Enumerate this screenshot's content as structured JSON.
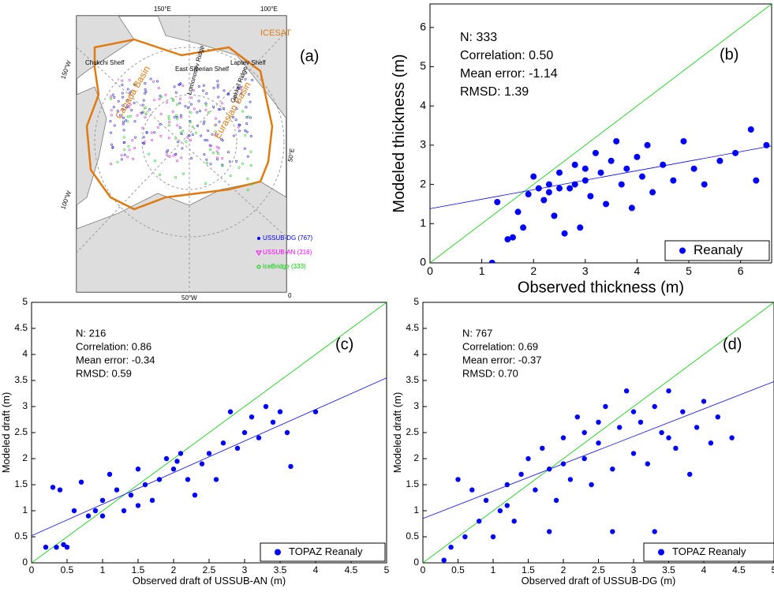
{
  "map": {
    "label": "(a)",
    "boundary_label": "ICESAT",
    "place_names": [
      "Chukchi Shelf",
      "East Siberian Shelf",
      "Laptev Shelf",
      "Canada Basin",
      "Eurasian Basin",
      "Lomonosov Ridge",
      "Gakkel Ridge"
    ],
    "coord_labels": [
      "150°E",
      "100°E",
      "150°W",
      "50°E",
      "100°W",
      "50°W",
      "0"
    ],
    "legend": [
      "USSUB-DG (767)",
      "USSUB-AN (216)",
      "IceBridge (333)"
    ]
  },
  "chart_data": [
    {
      "type": "scatter",
      "label": "(b)",
      "stats": [
        "N: 333",
        "Correlation: 0.50",
        "Mean error: -1.14",
        "RMSD: 1.39"
      ],
      "xlabel": "Observed thickness (m)",
      "ylabel": "Modeled thickness (m)",
      "xlim": [
        0,
        6.6
      ],
      "ylim": [
        0,
        6.6
      ],
      "xticks": [
        0,
        1,
        2,
        3,
        4,
        5,
        6
      ],
      "yticks": [
        0,
        1,
        2,
        3,
        4,
        5,
        6
      ],
      "legend": "lower right",
      "series": [
        {
          "name": "Reanaly",
          "color": "#0000ff",
          "x": [
            1.2,
            1.3,
            1.5,
            1.6,
            1.7,
            1.8,
            1.9,
            2.0,
            2.1,
            2.2,
            2.3,
            2.4,
            2.5,
            2.6,
            2.7,
            2.8,
            2.9,
            3.0,
            3.1,
            3.2,
            3.3,
            3.4,
            3.5,
            3.6,
            3.7,
            3.8,
            3.9,
            4.0,
            4.1,
            4.2,
            4.3,
            4.5,
            4.7,
            4.9,
            5.1,
            5.3,
            5.6,
            5.9,
            6.2,
            6.3,
            6.5,
            2.5,
            2.8,
            3.0,
            2.3
          ],
          "y": [
            0,
            1.55,
            0.6,
            0.65,
            1.3,
            0.9,
            1.75,
            2.2,
            1.9,
            1.6,
            2.0,
            1.2,
            2.3,
            0.75,
            1.9,
            2.5,
            0.9,
            2.1,
            1.7,
            2.8,
            2.3,
            1.5,
            2.6,
            3.1,
            2.0,
            2.4,
            1.4,
            2.7,
            2.2,
            3.0,
            1.8,
            2.5,
            2.1,
            3.1,
            2.4,
            2.0,
            2.6,
            2.8,
            3.4,
            2.1,
            3.0,
            1.9,
            2.0,
            2.4,
            1.8
          ]
        }
      ],
      "lines": [
        {
          "color": "#00cc00",
          "x": [
            0,
            6.6
          ],
          "y": [
            0,
            6.6
          ]
        },
        {
          "color": "#0000ff",
          "x": [
            0,
            6.6
          ],
          "y": [
            1.38,
            2.98
          ]
        }
      ]
    },
    {
      "type": "scatter",
      "label": "(c)",
      "stats": [
        "N: 216",
        "Correlation: 0.86",
        "Mean error: -0.34",
        "RMSD: 0.59"
      ],
      "xlabel": "Observed  draft of USSUB-AN (m)",
      "ylabel": "Modeled draft (m)",
      "xlim": [
        0,
        5
      ],
      "ylim": [
        0,
        5
      ],
      "xticks": [
        0,
        0.5,
        1,
        1.5,
        2,
        2.5,
        3,
        3.5,
        4,
        4.5,
        5
      ],
      "yticks": [
        0,
        0.5,
        1,
        1.5,
        2,
        2.5,
        3,
        3.5,
        4,
        4.5,
        5
      ],
      "legend": "lower right",
      "series": [
        {
          "name": "TOPAZ Reanaly",
          "color": "#0000ff",
          "x": [
            0.2,
            0.3,
            0.35,
            0.4,
            0.45,
            0.5,
            0.6,
            0.7,
            0.8,
            0.9,
            1.0,
            1.1,
            1.2,
            1.3,
            1.4,
            1.5,
            1.6,
            1.7,
            1.8,
            1.9,
            2.0,
            2.1,
            2.2,
            2.3,
            2.4,
            2.5,
            2.6,
            2.7,
            2.8,
            2.9,
            3.0,
            3.1,
            3.2,
            3.3,
            3.4,
            3.5,
            3.6,
            3.65,
            4.0,
            1.0,
            1.5,
            2.05
          ],
          "y": [
            0.3,
            1.45,
            0.3,
            1.4,
            0.35,
            0.3,
            1.0,
            1.55,
            0.9,
            1.0,
            1.2,
            1.7,
            1.4,
            1.0,
            1.3,
            1.8,
            1.5,
            1.2,
            1.6,
            2.0,
            1.8,
            2.1,
            1.6,
            1.3,
            1.9,
            2.1,
            1.6,
            2.3,
            2.9,
            2.2,
            2.5,
            2.8,
            2.4,
            3.0,
            2.7,
            2.9,
            2.5,
            1.85,
            2.9,
            0.9,
            1.1,
            1.95
          ]
        }
      ],
      "lines": [
        {
          "color": "#00cc00",
          "x": [
            0,
            5
          ],
          "y": [
            0,
            5
          ]
        },
        {
          "color": "#0000ff",
          "x": [
            0,
            5
          ],
          "y": [
            0.52,
            3.55
          ]
        }
      ]
    },
    {
      "type": "scatter",
      "label": "(d)",
      "stats": [
        "N: 767",
        "Correlation: 0.69",
        "Mean error: -0.37",
        "RMSD: 0.70"
      ],
      "xlabel": "Observed  draft of USSUB-DG (m)",
      "ylabel": "Modeled draft (m)",
      "xlim": [
        0,
        5
      ],
      "ylim": [
        0,
        5
      ],
      "xticks": [
        0,
        0.5,
        1,
        1.5,
        2,
        2.5,
        3,
        3.5,
        4,
        4.5,
        5
      ],
      "yticks": [
        0,
        0.5,
        1,
        1.5,
        2,
        2.5,
        3,
        3.5,
        4,
        4.5,
        5
      ],
      "legend": "lower right",
      "series": [
        {
          "name": "TOPAZ Reanaly",
          "color": "#0000ff",
          "x": [
            0.3,
            0.4,
            0.5,
            0.6,
            0.7,
            0.8,
            0.9,
            1.0,
            1.1,
            1.2,
            1.3,
            1.4,
            1.5,
            1.6,
            1.7,
            1.8,
            1.9,
            2.0,
            2.1,
            2.2,
            2.3,
            2.4,
            2.5,
            2.6,
            2.7,
            2.8,
            2.9,
            3.0,
            3.1,
            3.2,
            3.3,
            3.4,
            3.5,
            3.6,
            3.7,
            3.8,
            3.9,
            4.0,
            4.1,
            4.2,
            4.4,
            3.3,
            2.7,
            1.8,
            2.5,
            3.0,
            2.0,
            3.5,
            1.2,
            2.3
          ],
          "y": [
            0.05,
            0.3,
            1.6,
            0.5,
            1.4,
            0.8,
            1.2,
            0.5,
            1.0,
            1.5,
            0.8,
            1.7,
            2.0,
            1.4,
            2.2,
            1.8,
            1.2,
            2.4,
            1.6,
            2.8,
            2.0,
            1.5,
            2.3,
            3.0,
            1.8,
            2.6,
            3.3,
            2.1,
            2.7,
            1.9,
            3.0,
            2.5,
            3.3,
            2.2,
            2.9,
            1.7,
            2.6,
            3.1,
            2.3,
            2.8,
            2.4,
            0.6,
            0.6,
            0.6,
            2.7,
            2.9,
            1.9,
            2.4,
            1.1,
            2.5
          ]
        }
      ],
      "lines": [
        {
          "color": "#00cc00",
          "x": [
            0,
            5
          ],
          "y": [
            0,
            5
          ]
        },
        {
          "color": "#0000ff",
          "x": [
            0,
            5
          ],
          "y": [
            0.85,
            3.48
          ]
        }
      ]
    }
  ]
}
